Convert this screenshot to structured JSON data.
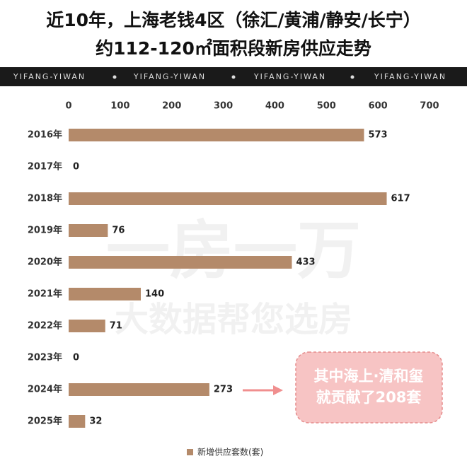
{
  "chart_data": {
    "type": "bar",
    "orientation": "horizontal",
    "title": "近10年，上海老钱4区（徐汇/黄浦/静安/长宁）",
    "subtitle": "约112-120㎡面积段新房供应走势",
    "banner_text": "YIFANG-YIWAN",
    "watermark": [
      "一房一万",
      "大数据帮您选房"
    ],
    "categories": [
      "2016年",
      "2017年",
      "2018年",
      "2019年",
      "2020年",
      "2021年",
      "2022年",
      "2023年",
      "2024年",
      "2025年"
    ],
    "series": [
      {
        "name": "新增供应套数(套)",
        "color": "#b48a6a",
        "values": [
          573,
          0,
          617,
          76,
          433,
          140,
          71,
          0,
          273,
          32
        ]
      }
    ],
    "xlim": [
      0,
      700
    ],
    "xticks": [
      0,
      100,
      200,
      300,
      400,
      500,
      600,
      700
    ],
    "annotation": [
      "其中海上·清和玺",
      "就贡献了208套"
    ],
    "grid": false,
    "legend": "bottom"
  }
}
